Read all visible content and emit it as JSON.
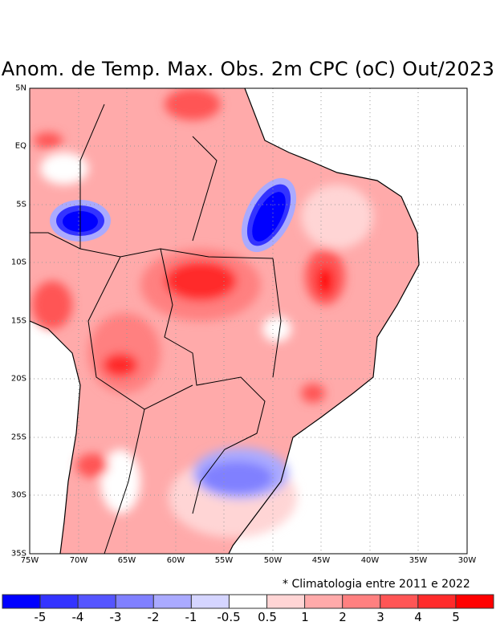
{
  "title": "Anom. de Temp. Max. Obs. 2m CPC (oC) Out/2023",
  "footnote": "* Climatologia entre 2011 e 2022",
  "lat_labels": [
    "5N",
    "EQ",
    "5S",
    "10S",
    "15S",
    "20S",
    "25S",
    "30S",
    "35S"
  ],
  "lon_labels": [
    "75W",
    "70W",
    "65W",
    "60W",
    "55W",
    "50W",
    "45W",
    "40W",
    "35W",
    "30W"
  ],
  "colorbar": {
    "labels": [
      "-5",
      "-4",
      "-3",
      "-2",
      "-1",
      "-0.5",
      "0.5",
      "1",
      "2",
      "3",
      "4",
      "5"
    ],
    "colors": [
      "#0000ff",
      "#3333ff",
      "#5555ff",
      "#8080ff",
      "#aaaaff",
      "#d5d5ff",
      "#ffffff",
      "#ffd5d5",
      "#ffaaaa",
      "#ff8080",
      "#ff5555",
      "#ff2a2a",
      "#ff0000"
    ]
  }
}
